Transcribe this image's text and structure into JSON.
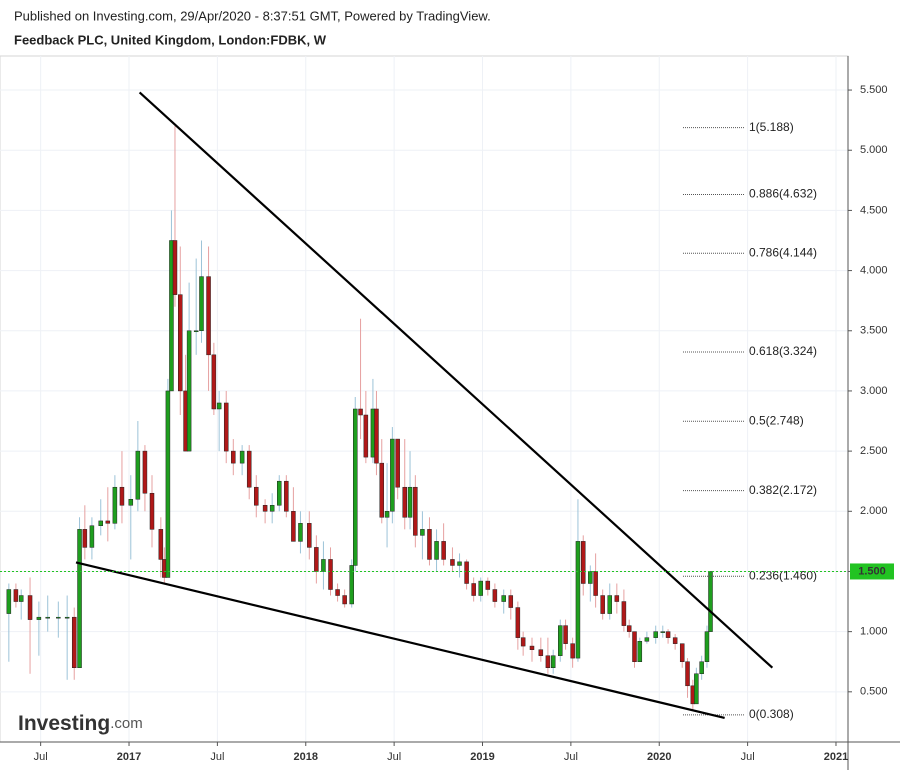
{
  "chart_data": {
    "type": "candlestick",
    "header": "Published on Investing.com, 29/Apr/2020 - 8:37:51 GMT, Powered by TradingView.",
    "title": "Feedback PLC, United Kingdom, London:FDBK, W",
    "watermark": {
      "brand": "Investing",
      "suffix": ".com"
    },
    "up_color": "#1e9e1e",
    "down_color": "#b01818",
    "x": [
      2016.32,
      2016.36,
      2016.39,
      2016.44,
      2016.49,
      2016.54,
      2016.6,
      2016.65,
      2016.69,
      2016.72,
      2016.75,
      2016.79,
      2016.84,
      2016.88,
      2016.92,
      2016.96,
      2017.01,
      2017.05,
      2017.09,
      2017.13,
      2017.18,
      2017.2,
      2017.22,
      2017.24,
      2017.26,
      2017.29,
      2017.32,
      2017.34,
      2017.38,
      2017.41,
      2017.45,
      2017.48,
      2017.51,
      2017.55,
      2017.59,
      2017.64,
      2017.68,
      2017.72,
      2017.77,
      2017.81,
      2017.85,
      2017.89,
      2017.93,
      2017.97,
      2018.02,
      2018.06,
      2018.1,
      2018.14,
      2018.18,
      2018.22,
      2018.26,
      2018.28,
      2018.31,
      2018.34,
      2018.38,
      2018.4,
      2018.43,
      2018.46,
      2018.49,
      2018.52,
      2018.56,
      2018.59,
      2018.62,
      2018.66,
      2018.7,
      2018.74,
      2018.78,
      2018.83,
      2018.87,
      2018.91,
      2018.95,
      2018.99,
      2019.03,
      2019.07,
      2019.12,
      2019.16,
      2019.2,
      2019.23,
      2019.28,
      2019.33,
      2019.37,
      2019.4,
      2019.44,
      2019.47,
      2019.51,
      2019.54,
      2019.57,
      2019.61,
      2019.64,
      2019.68,
      2019.72,
      2019.76,
      2019.8,
      2019.83,
      2019.86,
      2019.89,
      2019.93,
      2019.98,
      2020.02,
      2020.05,
      2020.09,
      2020.13,
      2020.16,
      2020.19,
      2020.21,
      2020.24,
      2020.27,
      2020.29
    ],
    "open": [
      1.15,
      1.35,
      1.25,
      1.3,
      1.1,
      1.12,
      1.12,
      1.12,
      1.12,
      0.7,
      1.85,
      1.7,
      1.88,
      1.92,
      1.9,
      2.2,
      2.05,
      2.1,
      2.5,
      2.15,
      1.85,
      1.6,
      1.45,
      3.0,
      4.25,
      3.8,
      3.0,
      2.5,
      3.5,
      3.5,
      3.95,
      3.3,
      2.85,
      2.9,
      2.5,
      2.4,
      2.5,
      2.2,
      2.05,
      2.0,
      2.05,
      2.25,
      2.0,
      1.75,
      1.9,
      1.7,
      1.5,
      1.6,
      1.35,
      1.3,
      1.23,
      1.55,
      2.85,
      2.8,
      2.45,
      2.85,
      2.4,
      1.95,
      2.0,
      2.6,
      2.2,
      1.95,
      2.2,
      1.8,
      1.85,
      1.6,
      1.75,
      1.6,
      1.55,
      1.58,
      1.4,
      1.3,
      1.42,
      1.35,
      1.25,
      1.3,
      1.2,
      0.95,
      0.88,
      0.85,
      0.8,
      0.7,
      0.8,
      1.05,
      0.9,
      0.78,
      1.75,
      1.4,
      1.5,
      1.3,
      1.15,
      1.3,
      1.25,
      1.05,
      1.0,
      0.75,
      0.92,
      0.95,
      1.0,
      1.0,
      0.95,
      0.9,
      0.75,
      0.55,
      0.4,
      0.65,
      0.75,
      1.0
    ],
    "high": [
      1.4,
      1.4,
      1.35,
      1.45,
      1.25,
      1.3,
      1.25,
      1.3,
      1.2,
      1.95,
      2.05,
      1.95,
      2.1,
      2.2,
      2.3,
      2.5,
      2.3,
      2.75,
      2.55,
      2.3,
      1.95,
      1.7,
      3.1,
      4.5,
      5.2,
      4.2,
      3.3,
      3.9,
      4.1,
      4.25,
      4.2,
      3.4,
      3.0,
      3.0,
      2.6,
      2.55,
      2.55,
      2.3,
      2.1,
      2.15,
      2.3,
      2.3,
      2.2,
      2.0,
      2.0,
      1.8,
      1.75,
      1.7,
      1.4,
      1.35,
      1.6,
      2.95,
      3.6,
      3.0,
      3.1,
      3.0,
      2.6,
      2.4,
      2.7,
      2.6,
      2.6,
      2.5,
      2.3,
      2.0,
      1.95,
      1.85,
      1.9,
      1.7,
      1.65,
      1.6,
      1.45,
      1.45,
      1.45,
      1.4,
      1.35,
      1.35,
      1.25,
      1.0,
      0.95,
      0.95,
      0.95,
      0.85,
      1.1,
      1.1,
      0.95,
      2.1,
      1.8,
      1.55,
      1.65,
      1.35,
      1.4,
      1.4,
      1.35,
      1.1,
      1.0,
      0.95,
      1.0,
      1.05,
      1.05,
      1.02,
      0.98,
      0.9,
      0.78,
      0.6,
      0.7,
      0.8,
      1.05,
      1.5
    ],
    "low": [
      0.75,
      1.2,
      1.1,
      0.65,
      0.8,
      1.0,
      0.95,
      0.6,
      0.6,
      0.7,
      1.6,
      1.6,
      1.8,
      1.75,
      1.85,
      1.9,
      1.6,
      2.0,
      2.0,
      1.7,
      1.45,
      1.4,
      1.45,
      3.0,
      3.7,
      2.8,
      2.5,
      2.5,
      3.3,
      3.4,
      3.0,
      2.8,
      2.5,
      2.4,
      2.3,
      2.3,
      2.1,
      1.95,
      1.9,
      1.9,
      2.0,
      1.95,
      1.75,
      1.65,
      1.6,
      1.4,
      1.35,
      1.3,
      1.25,
      1.2,
      1.2,
      1.5,
      2.6,
      2.4,
      2.4,
      2.3,
      1.9,
      1.7,
      1.9,
      2.1,
      1.85,
      1.85,
      1.7,
      1.6,
      1.55,
      1.5,
      1.55,
      1.5,
      1.45,
      1.35,
      1.25,
      1.25,
      1.3,
      1.2,
      1.15,
      1.1,
      0.85,
      0.8,
      0.75,
      0.75,
      0.65,
      0.65,
      0.75,
      0.85,
      0.7,
      0.75,
      1.3,
      1.25,
      1.2,
      1.1,
      1.1,
      1.15,
      1.0,
      0.95,
      0.7,
      0.75,
      0.9,
      0.9,
      0.95,
      0.9,
      0.85,
      0.7,
      0.45,
      0.35,
      0.4,
      0.6,
      0.7,
      1.0
    ],
    "close": [
      1.35,
      1.25,
      1.3,
      1.1,
      1.12,
      1.12,
      1.12,
      1.12,
      0.7,
      1.85,
      1.7,
      1.88,
      1.92,
      1.9,
      2.2,
      2.05,
      2.1,
      2.5,
      2.15,
      1.85,
      1.6,
      1.45,
      3.0,
      4.25,
      3.8,
      3.0,
      2.5,
      3.5,
      3.5,
      3.95,
      3.3,
      2.85,
      2.9,
      2.5,
      2.4,
      2.5,
      2.2,
      2.05,
      2.0,
      2.05,
      2.25,
      2.0,
      1.75,
      1.9,
      1.7,
      1.5,
      1.6,
      1.35,
      1.3,
      1.23,
      1.55,
      2.85,
      2.8,
      2.45,
      2.85,
      2.4,
      1.95,
      2.0,
      2.6,
      2.2,
      1.95,
      2.2,
      1.8,
      1.85,
      1.6,
      1.75,
      1.6,
      1.55,
      1.58,
      1.4,
      1.3,
      1.42,
      1.35,
      1.25,
      1.3,
      1.2,
      0.95,
      0.88,
      0.85,
      0.8,
      0.7,
      0.8,
      1.05,
      0.9,
      0.78,
      1.75,
      1.4,
      1.5,
      1.3,
      1.15,
      1.3,
      1.25,
      1.05,
      1.0,
      0.75,
      0.92,
      0.95,
      1.0,
      1.0,
      0.95,
      0.9,
      0.75,
      0.55,
      0.4,
      0.65,
      0.75,
      1.0,
      1.5
    ],
    "xlim": [
      2016.27,
      2021.068
    ],
    "xticks": [
      {
        "value": 2016.5,
        "label": "Jul"
      },
      2017,
      {
        "value": 2017.5,
        "label": "Jul"
      },
      2018,
      {
        "value": 2018.5,
        "label": "Jul"
      },
      2019,
      {
        "value": 2019.5,
        "label": "Jul"
      },
      2020,
      {
        "value": 2020.5,
        "label": "Jul"
      },
      2021
    ],
    "ylim": [
      0.083,
      5.783
    ],
    "yticks": [
      {
        "value": 0.5,
        "label": "0.500"
      },
      {
        "value": 1,
        "label": "1.000"
      },
      {
        "value": 1.5,
        "label": "1.500"
      },
      {
        "value": 2,
        "label": "2.000"
      },
      {
        "value": 2.5,
        "label": "2.500"
      },
      {
        "value": 3,
        "label": "3.000"
      },
      {
        "value": 3.5,
        "label": "3.500"
      },
      {
        "value": 4,
        "label": "4.000"
      },
      {
        "value": 4.5,
        "label": "4.500"
      },
      {
        "value": 5,
        "label": "5.000"
      },
      {
        "value": 5.5,
        "label": "5.500"
      }
    ],
    "grid": true,
    "last_price": {
      "value": 1.5,
      "label": "1.500",
      "color": "#22c322"
    },
    "fib_levels": [
      {
        "value": 5.188,
        "label": "1(5.188)"
      },
      {
        "value": 4.632,
        "label": "0.886(4.632)"
      },
      {
        "value": 4.144,
        "label": "0.786(4.144)"
      },
      {
        "value": 3.324,
        "label": "0.618(3.324)"
      },
      {
        "value": 2.748,
        "label": "0.5(2.748)"
      },
      {
        "value": 2.172,
        "label": "0.382(2.172)"
      },
      {
        "value": 1.46,
        "label": "0.236(1.460)"
      },
      {
        "value": 0.308,
        "label": "0(0.308)"
      }
    ],
    "trendlines": [
      {
        "x": [
          2017.06,
          2020.64
        ],
        "y": [
          5.48,
          0.7
        ],
        "color": "#000000"
      },
      {
        "x": [
          2016.7,
          2020.37
        ],
        "y": [
          1.575,
          0.283
        ],
        "color": "#000000"
      }
    ]
  }
}
